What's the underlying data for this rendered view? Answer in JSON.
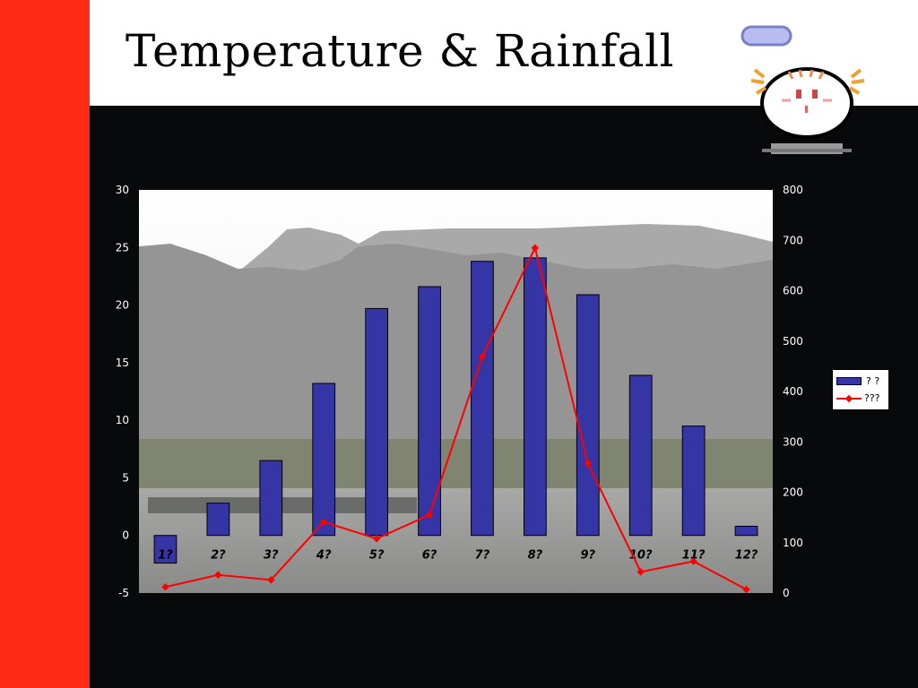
{
  "title": "Temperature & Rainfall",
  "colors": {
    "accent": "#ff2a14",
    "bar": "#3535a6",
    "line": "#ff0000",
    "background": "#07090b"
  },
  "chart_data": {
    "type": "bar",
    "title": "",
    "categories": [
      "1?",
      "2?",
      "3?",
      "4?",
      "5?",
      "6?",
      "7?",
      "8?",
      "9?",
      "10?",
      "11?",
      "12?"
    ],
    "y_left": {
      "ylim": [
        -5,
        30
      ],
      "ticks": [
        -5,
        0,
        5,
        10,
        15,
        20,
        25,
        30
      ]
    },
    "y_right": {
      "ylim": [
        0,
        800
      ],
      "ticks": [
        0,
        100,
        200,
        300,
        400,
        500,
        600,
        700,
        800
      ]
    },
    "series": [
      {
        "name": "?  ?",
        "type": "bar",
        "axis": "left",
        "values": [
          -2.4,
          2.8,
          6.5,
          13.2,
          19.7,
          21.6,
          23.8,
          24.1,
          20.9,
          13.9,
          9.5,
          0.8
        ]
      },
      {
        "name": "???",
        "type": "line",
        "axis": "right",
        "values": [
          12,
          36,
          26,
          141,
          108,
          155,
          469,
          685,
          257,
          42,
          63,
          7
        ]
      }
    ],
    "legend_position": "right",
    "grid": false
  }
}
